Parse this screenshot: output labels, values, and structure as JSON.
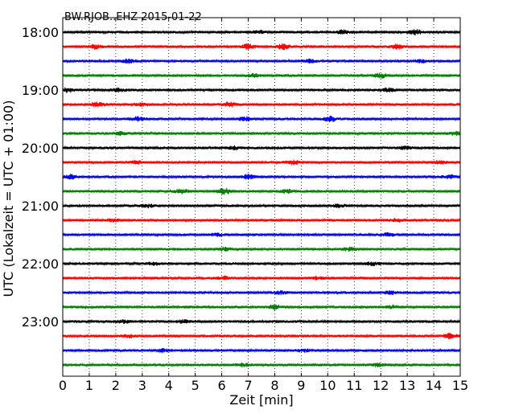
{
  "chart_data": {
    "type": "line",
    "title": "BW.RJOB..EHZ 2015-01-22",
    "xlabel": "Zeit  [min]",
    "ylabel": "UTC (Lokalzeit = UTC + 01:00)",
    "xlim": [
      0,
      15
    ],
    "xticks": [
      0,
      1,
      2,
      3,
      4,
      5,
      6,
      7,
      8,
      9,
      10,
      11,
      12,
      13,
      14,
      15
    ],
    "yticks": [
      "18:00",
      "19:00",
      "20:00",
      "21:00",
      "22:00",
      "23:00"
    ],
    "grid": "vertical dotted at each minute",
    "trace_minutes": 15,
    "traces_per_hour": 4,
    "colors": [
      "#000000",
      "#ff0000",
      "#0000ff",
      "#008000"
    ],
    "series": [
      {
        "start": "18:00",
        "color": "#000000",
        "noise": 3,
        "bursts": [
          {
            "t": 13.3,
            "a": 5
          },
          {
            "t": 10.6,
            "a": 4
          },
          {
            "t": 7.4,
            "a": 3
          }
        ]
      },
      {
        "start": "18:15",
        "color": "#ff0000",
        "noise": 3,
        "bursts": [
          {
            "t": 1.2,
            "a": 4
          },
          {
            "t": 7.0,
            "a": 5
          },
          {
            "t": 8.3,
            "a": 5
          },
          {
            "t": 12.6,
            "a": 4
          }
        ]
      },
      {
        "start": "18:30",
        "color": "#0000ff",
        "noise": 3,
        "bursts": [
          {
            "t": 2.5,
            "a": 4
          },
          {
            "t": 9.3,
            "a": 3
          },
          {
            "t": 13.5,
            "a": 3
          }
        ]
      },
      {
        "start": "18:45",
        "color": "#008000",
        "noise": 3,
        "bursts": [
          {
            "t": 12.0,
            "a": 4
          },
          {
            "t": 7.2,
            "a": 3
          }
        ]
      },
      {
        "start": "19:00",
        "color": "#000000",
        "noise": 3,
        "bursts": [
          {
            "t": 0.2,
            "a": 4
          },
          {
            "t": 2.1,
            "a": 3
          },
          {
            "t": 12.3,
            "a": 4
          }
        ]
      },
      {
        "start": "19:15",
        "color": "#ff0000",
        "noise": 3,
        "bursts": [
          {
            "t": 1.3,
            "a": 5
          },
          {
            "t": 6.3,
            "a": 5
          },
          {
            "t": 3.0,
            "a": 3
          }
        ]
      },
      {
        "start": "19:30",
        "color": "#0000ff",
        "noise": 3,
        "bursts": [
          {
            "t": 10.1,
            "a": 5
          },
          {
            "t": 2.8,
            "a": 4
          },
          {
            "t": 6.9,
            "a": 4
          }
        ]
      },
      {
        "start": "19:45",
        "color": "#008000",
        "noise": 3,
        "bursts": [
          {
            "t": 14.8,
            "a": 3
          },
          {
            "t": 2.2,
            "a": 3
          }
        ]
      },
      {
        "start": "20:00",
        "color": "#000000",
        "noise": 3,
        "bursts": [
          {
            "t": 6.5,
            "a": 3
          },
          {
            "t": 12.9,
            "a": 3
          }
        ]
      },
      {
        "start": "20:15",
        "color": "#ff0000",
        "noise": 3,
        "bursts": [
          {
            "t": 8.7,
            "a": 4
          },
          {
            "t": 14.2,
            "a": 3
          },
          {
            "t": 2.8,
            "a": 3
          }
        ]
      },
      {
        "start": "20:30",
        "color": "#0000ff",
        "noise": 3,
        "bursts": [
          {
            "t": 0.3,
            "a": 4
          },
          {
            "t": 7.0,
            "a": 4
          },
          {
            "t": 14.6,
            "a": 3
          }
        ]
      },
      {
        "start": "20:45",
        "color": "#008000",
        "noise": 3,
        "bursts": [
          {
            "t": 4.5,
            "a": 5
          },
          {
            "t": 6.1,
            "a": 6
          },
          {
            "t": 8.5,
            "a": 3
          }
        ]
      },
      {
        "start": "21:00",
        "color": "#000000",
        "noise": 3,
        "bursts": [
          {
            "t": 3.2,
            "a": 3
          },
          {
            "t": 10.4,
            "a": 3
          }
        ]
      },
      {
        "start": "21:15",
        "color": "#ff0000",
        "noise": 3,
        "bursts": [
          {
            "t": 1.9,
            "a": 3
          },
          {
            "t": 12.6,
            "a": 3
          }
        ]
      },
      {
        "start": "21:30",
        "color": "#0000ff",
        "noise": 3,
        "bursts": [
          {
            "t": 5.8,
            "a": 3
          },
          {
            "t": 12.3,
            "a": 3
          }
        ]
      },
      {
        "start": "21:45",
        "color": "#008000",
        "noise": 3,
        "bursts": [
          {
            "t": 6.1,
            "a": 3
          },
          {
            "t": 10.8,
            "a": 3
          }
        ]
      },
      {
        "start": "22:00",
        "color": "#000000",
        "noise": 3,
        "bursts": [
          {
            "t": 11.7,
            "a": 3
          },
          {
            "t": 3.4,
            "a": 3
          }
        ]
      },
      {
        "start": "22:15",
        "color": "#ff0000",
        "noise": 3,
        "bursts": [
          {
            "t": 6.1,
            "a": 3
          },
          {
            "t": 9.6,
            "a": 3
          }
        ]
      },
      {
        "start": "22:30",
        "color": "#0000ff",
        "noise": 3,
        "bursts": [
          {
            "t": 12.4,
            "a": 3
          },
          {
            "t": 8.2,
            "a": 3
          }
        ]
      },
      {
        "start": "22:45",
        "color": "#008000",
        "noise": 3,
        "bursts": [
          {
            "t": 8.0,
            "a": 4
          },
          {
            "t": 12.5,
            "a": 3
          }
        ]
      },
      {
        "start": "23:00",
        "color": "#000000",
        "noise": 3,
        "bursts": [
          {
            "t": 2.3,
            "a": 3
          },
          {
            "t": 4.6,
            "a": 3
          }
        ]
      },
      {
        "start": "23:15",
        "color": "#ff0000",
        "noise": 3,
        "bursts": [
          {
            "t": 14.6,
            "a": 5
          },
          {
            "t": 2.5,
            "a": 3
          }
        ]
      },
      {
        "start": "23:30",
        "color": "#0000ff",
        "noise": 3,
        "bursts": [
          {
            "t": 3.8,
            "a": 3
          },
          {
            "t": 9.1,
            "a": 3
          }
        ]
      },
      {
        "start": "23:45",
        "color": "#008000",
        "noise": 3,
        "bursts": [
          {
            "t": 6.8,
            "a": 3
          },
          {
            "t": 11.9,
            "a": 3
          }
        ]
      }
    ]
  }
}
